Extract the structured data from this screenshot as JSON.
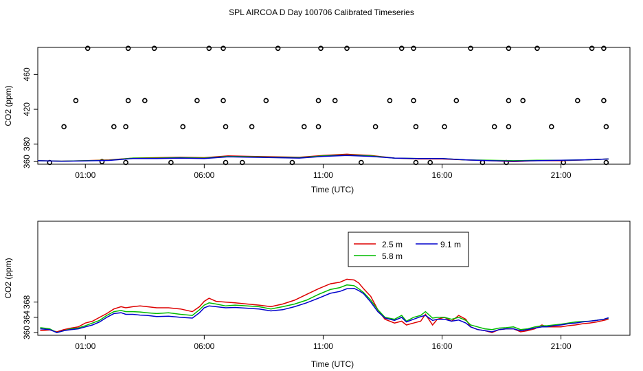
{
  "figure_title": "SPL AIRCOA D  Day 100706  Calibrated Timeseries",
  "chart_data": [
    {
      "type": "scatter",
      "title": "",
      "xlabel": "Time (UTC)",
      "ylabel": "CO2 (ppm)",
      "xlim": [
        -1.0,
        23.9
      ],
      "ylim": [
        357,
        491
      ],
      "xticks": [
        1,
        6,
        11,
        16,
        21
      ],
      "xtick_labels": [
        "01:00",
        "06:00",
        "11:00",
        "16:00",
        "21:00"
      ],
      "yticks": [
        360,
        380,
        420,
        460
      ],
      "ytick_labels": [
        "360",
        "380",
        "420",
        "460"
      ],
      "points": [
        [
          -0.5,
          359
        ],
        [
          0.1,
          400
        ],
        [
          0.6,
          430
        ],
        [
          1.1,
          490
        ],
        [
          1.7,
          360
        ],
        [
          2.2,
          400
        ],
        [
          2.7,
          359
        ],
        [
          2.7,
          400
        ],
        [
          2.8,
          430
        ],
        [
          2.8,
          490
        ],
        [
          3.5,
          430
        ],
        [
          3.9,
          490
        ],
        [
          4.6,
          359
        ],
        [
          5.1,
          400
        ],
        [
          5.7,
          430
        ],
        [
          6.2,
          490
        ],
        [
          6.8,
          490
        ],
        [
          6.8,
          430
        ],
        [
          6.9,
          400
        ],
        [
          6.9,
          359
        ],
        [
          7.6,
          359
        ],
        [
          8.0,
          400
        ],
        [
          8.6,
          430
        ],
        [
          9.1,
          490
        ],
        [
          9.7,
          359
        ],
        [
          10.2,
          400
        ],
        [
          10.8,
          400
        ],
        [
          10.8,
          430
        ],
        [
          10.9,
          490
        ],
        [
          11.5,
          430
        ],
        [
          12.0,
          490
        ],
        [
          12.6,
          359
        ],
        [
          13.2,
          400
        ],
        [
          13.8,
          430
        ],
        [
          14.3,
          490
        ],
        [
          14.8,
          490
        ],
        [
          14.8,
          430
        ],
        [
          14.9,
          400
        ],
        [
          14.9,
          359
        ],
        [
          15.5,
          359
        ],
        [
          16.1,
          400
        ],
        [
          16.6,
          430
        ],
        [
          17.2,
          490
        ],
        [
          17.7,
          359
        ],
        [
          18.2,
          400
        ],
        [
          18.7,
          359
        ],
        [
          18.8,
          400
        ],
        [
          18.8,
          430
        ],
        [
          18.8,
          490
        ],
        [
          19.4,
          430
        ],
        [
          20.0,
          490
        ],
        [
          20.6,
          400
        ],
        [
          21.1,
          359
        ],
        [
          21.7,
          430
        ],
        [
          22.3,
          490
        ],
        [
          22.8,
          490
        ],
        [
          22.8,
          430
        ],
        [
          22.9,
          400
        ],
        [
          22.9,
          359
        ]
      ],
      "series": [
        {
          "name": "2.5 m",
          "color": "#dd0000",
          "x": [
            -1,
            0,
            1,
            2,
            3,
            4,
            5,
            6,
            7,
            8,
            9,
            10,
            11,
            12,
            13,
            14,
            15,
            16,
            17,
            18,
            19,
            20,
            21,
            22,
            23
          ],
          "values": [
            361,
            360.5,
            361,
            362,
            364,
            364.5,
            365,
            364.5,
            366.5,
            366,
            365.5,
            365,
            367,
            368.5,
            367,
            364,
            363,
            363,
            362,
            361,
            360,
            361,
            361,
            362,
            363
          ]
        },
        {
          "name": "5.8 m",
          "color": "#00bb00",
          "x": [
            -1,
            0,
            1,
            2,
            3,
            4,
            5,
            6,
            7,
            8,
            9,
            10,
            11,
            12,
            13,
            14,
            15,
            16,
            17,
            18,
            19,
            20,
            21,
            22,
            23
          ],
          "values": [
            361,
            360.5,
            361,
            361.5,
            364,
            364,
            364.5,
            364,
            366,
            365.5,
            365,
            364.5,
            366.5,
            367.5,
            366.5,
            364,
            363.5,
            363.5,
            362,
            361.5,
            361,
            361.5,
            361.5,
            362,
            363
          ]
        },
        {
          "name": "9.1 m",
          "color": "#0000cc",
          "x": [
            -1,
            0,
            1,
            2,
            3,
            4,
            5,
            6,
            7,
            8,
            9,
            10,
            11,
            12,
            13,
            14,
            15,
            16,
            17,
            18,
            19,
            20,
            21,
            22,
            23
          ],
          "values": [
            361,
            360.5,
            360.8,
            361.3,
            363.5,
            363.5,
            364,
            363.5,
            365.5,
            365,
            364.5,
            364,
            366,
            367,
            366,
            364,
            363.5,
            363.5,
            362,
            361,
            360.5,
            361,
            361.5,
            362,
            363
          ]
        }
      ]
    },
    {
      "type": "line",
      "title": "",
      "xlabel": "Time (UTC)",
      "ylabel": "CO2 (ppm)",
      "xlim": [
        -1.0,
        23.9
      ],
      "ylim": [
        359.3,
        389.2
      ],
      "xticks": [
        1,
        6,
        11,
        16,
        21
      ],
      "xtick_labels": [
        "01:00",
        "06:00",
        "11:00",
        "16:00",
        "21:00"
      ],
      "yticks": [
        360,
        364,
        368
      ],
      "ytick_labels": [
        "360",
        "364",
        "368"
      ],
      "legend": {
        "position": "top-center",
        "entries": [
          "2.5 m",
          "9.1 m",
          "5.8 m"
        ]
      },
      "series": [
        {
          "name": "2.5 m",
          "color": "#dd0000",
          "x": [
            -0.9,
            -0.5,
            -0.2,
            0.1,
            0.4,
            0.7,
            1.0,
            1.3,
            1.6,
            1.9,
            2.2,
            2.5,
            2.7,
            3.0,
            3.3,
            3.6,
            4.0,
            4.5,
            5.0,
            5.5,
            5.8,
            6.0,
            6.2,
            6.5,
            6.9,
            7.3,
            7.8,
            8.3,
            8.8,
            9.3,
            9.8,
            10.3,
            10.8,
            11.3,
            11.7,
            12.0,
            12.3,
            12.5,
            12.7,
            13.0,
            13.3,
            13.6,
            14.0,
            14.3,
            14.5,
            14.8,
            15.1,
            15.3,
            15.6,
            15.8,
            16.1,
            16.4,
            16.7,
            17.0,
            17.2,
            17.5,
            17.8,
            18.1,
            18.4,
            18.7,
            19.0,
            19.3,
            19.6,
            19.9,
            20.2,
            20.4,
            20.7,
            21.0,
            21.3,
            21.6,
            21.9,
            22.2,
            22.5,
            22.8,
            23.0
          ],
          "values": [
            360.5,
            360.7,
            360.2,
            360.8,
            361.2,
            361.5,
            362.5,
            363.0,
            364.0,
            365.0,
            366.2,
            366.8,
            366.5,
            366.8,
            367.0,
            366.8,
            366.5,
            366.5,
            366.2,
            365.5,
            366.8,
            368.2,
            369.0,
            368.2,
            368.0,
            367.8,
            367.5,
            367.2,
            366.8,
            367.5,
            368.5,
            370.0,
            371.5,
            372.8,
            373.2,
            374.0,
            373.8,
            373.0,
            371.5,
            369.5,
            366.0,
            363.5,
            362.5,
            363.0,
            362.0,
            362.5,
            363.0,
            364.8,
            362.0,
            363.5,
            364.0,
            363.0,
            364.5,
            363.5,
            361.5,
            360.8,
            360.5,
            360.0,
            360.8,
            361.0,
            361.0,
            360.2,
            360.5,
            361.0,
            362.0,
            361.5,
            361.5,
            361.5,
            361.8,
            362.0,
            362.3,
            362.5,
            362.8,
            363.2,
            363.5
          ]
        },
        {
          "name": "5.8 m",
          "color": "#00bb00",
          "x": [
            -0.9,
            -0.5,
            -0.2,
            0.1,
            0.4,
            0.7,
            1.0,
            1.3,
            1.6,
            1.9,
            2.2,
            2.5,
            2.7,
            3.0,
            3.3,
            3.6,
            4.0,
            4.5,
            5.0,
            5.5,
            5.8,
            6.0,
            6.2,
            6.5,
            6.9,
            7.3,
            7.8,
            8.3,
            8.8,
            9.3,
            9.8,
            10.3,
            10.8,
            11.3,
            11.7,
            12.0,
            12.3,
            12.5,
            12.7,
            13.0,
            13.3,
            13.6,
            14.0,
            14.3,
            14.5,
            14.8,
            15.1,
            15.3,
            15.6,
            15.8,
            16.1,
            16.4,
            16.7,
            17.0,
            17.2,
            17.5,
            17.8,
            18.1,
            18.4,
            18.7,
            19.0,
            19.3,
            19.6,
            19.9,
            20.2,
            20.4,
            20.7,
            21.0,
            21.3,
            21.6,
            21.9,
            22.2,
            22.5,
            22.8,
            23.0
          ],
          "values": [
            361.3,
            361.0,
            360.0,
            360.5,
            361.0,
            361.2,
            361.8,
            362.5,
            363.2,
            364.5,
            365.5,
            365.8,
            365.5,
            365.5,
            365.4,
            365.2,
            365.0,
            365.2,
            364.8,
            364.5,
            366.0,
            367.2,
            367.8,
            367.5,
            367.0,
            367.2,
            367.0,
            366.8,
            366.2,
            366.8,
            367.5,
            368.5,
            370.0,
            371.3,
            371.8,
            372.5,
            372.3,
            371.5,
            370.5,
            368.5,
            366.0,
            364.0,
            363.5,
            364.5,
            363.0,
            364.0,
            364.5,
            365.5,
            363.8,
            364.0,
            364.0,
            363.5,
            364.0,
            363.2,
            362.0,
            361.5,
            361.0,
            360.8,
            361.2,
            361.3,
            361.5,
            360.8,
            361.0,
            361.5,
            361.8,
            361.8,
            362.0,
            362.2,
            362.5,
            362.8,
            362.9,
            363.0,
            363.2,
            363.5,
            363.8
          ]
        },
        {
          "name": "9.1 m",
          "color": "#0000cc",
          "x": [
            -0.9,
            -0.5,
            -0.2,
            0.1,
            0.4,
            0.7,
            1.0,
            1.3,
            1.6,
            1.9,
            2.2,
            2.5,
            2.7,
            3.0,
            3.3,
            3.6,
            4.0,
            4.5,
            5.0,
            5.5,
            5.8,
            6.0,
            6.2,
            6.5,
            6.9,
            7.3,
            7.8,
            8.3,
            8.8,
            9.3,
            9.8,
            10.3,
            10.8,
            11.3,
            11.7,
            12.0,
            12.3,
            12.5,
            12.7,
            13.0,
            13.3,
            13.6,
            14.0,
            14.3,
            14.5,
            14.8,
            15.1,
            15.3,
            15.6,
            15.8,
            16.1,
            16.4,
            16.7,
            17.0,
            17.2,
            17.5,
            17.8,
            18.1,
            18.4,
            18.7,
            19.0,
            19.3,
            19.6,
            19.9,
            20.2,
            20.4,
            20.7,
            21.0,
            21.3,
            21.6,
            21.9,
            22.2,
            22.5,
            22.8,
            23.0
          ],
          "values": [
            361.0,
            360.8,
            360.0,
            360.5,
            360.8,
            361.0,
            361.5,
            362.0,
            362.8,
            364.0,
            365.0,
            365.2,
            364.8,
            364.8,
            364.6,
            364.5,
            364.2,
            364.3,
            364.0,
            363.8,
            365.2,
            366.5,
            367.0,
            366.8,
            366.5,
            366.6,
            366.4,
            366.2,
            365.7,
            366.0,
            366.8,
            367.8,
            369.0,
            370.3,
            370.8,
            371.5,
            371.6,
            371.0,
            370.2,
            368.0,
            365.5,
            363.8,
            363.2,
            364.0,
            362.8,
            363.5,
            364.2,
            364.5,
            363.2,
            363.5,
            363.5,
            363.0,
            363.3,
            362.5,
            361.5,
            360.8,
            360.5,
            360.2,
            360.8,
            361.0,
            361.0,
            360.5,
            360.8,
            361.2,
            361.5,
            361.5,
            361.8,
            362.0,
            362.3,
            362.5,
            362.8,
            363.0,
            363.2,
            363.5,
            363.9
          ]
        }
      ]
    }
  ]
}
